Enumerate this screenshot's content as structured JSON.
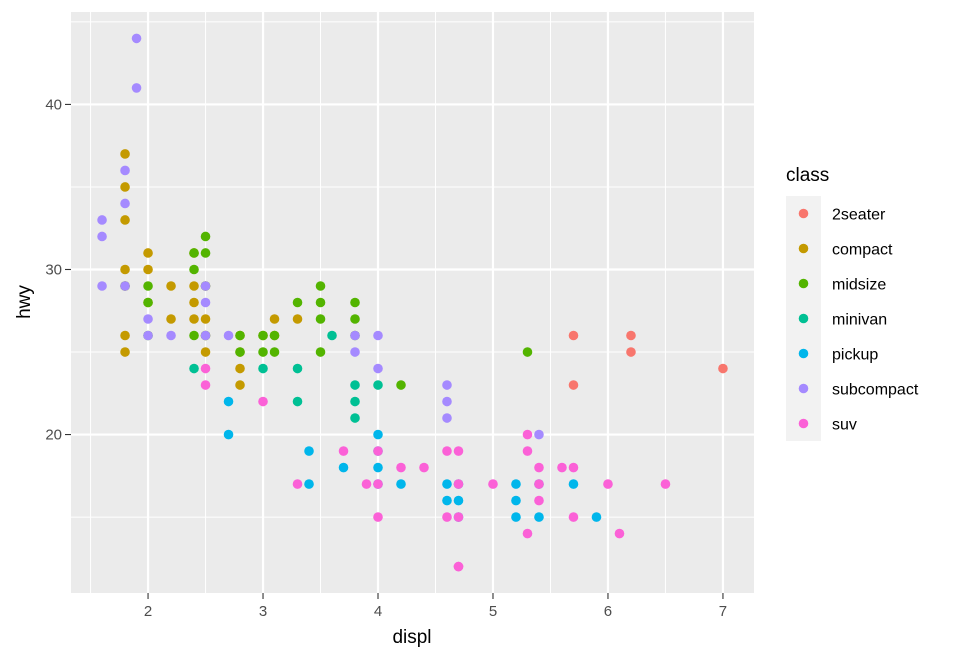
{
  "chart_data": {
    "type": "scatter",
    "xlabel": "displ",
    "ylabel": "hwy",
    "xlim": [
      1.33,
      7.27
    ],
    "ylim": [
      10.4,
      45.6
    ],
    "x_ticks": [
      2,
      3,
      4,
      5,
      6,
      7
    ],
    "y_ticks": [
      20,
      30,
      40
    ],
    "x_tick_labels": [
      "2",
      "3",
      "4",
      "5",
      "6",
      "7"
    ],
    "y_tick_labels": [
      "20",
      "30",
      "40"
    ],
    "grid": true,
    "legend": {
      "title": "class",
      "position": "right"
    },
    "series": [
      {
        "name": "2seater",
        "color": "#F8766D",
        "x": [
          5.7,
          5.7,
          6.2,
          6.2,
          7.0
        ],
        "y": [
          26,
          23,
          26,
          25,
          24
        ]
      },
      {
        "name": "compact",
        "color": "#C49A00",
        "x": [
          1.8,
          1.8,
          1.8,
          1.8,
          1.8,
          1.8,
          1.8,
          2.0,
          2.0,
          2.0,
          2.2,
          2.2,
          2.4,
          2.4,
          2.4,
          2.4,
          2.5,
          2.5,
          2.5,
          2.5,
          2.8,
          2.8,
          2.8,
          2.8,
          3.0,
          3.1,
          3.1,
          3.3
        ],
        "y": [
          37,
          35,
          33,
          30,
          29,
          26,
          25,
          31,
          30,
          28,
          29,
          27,
          31,
          29,
          28,
          27,
          29,
          27,
          26,
          25,
          26,
          25,
          24,
          23,
          26,
          27,
          26,
          27
        ]
      },
      {
        "name": "midsize",
        "color": "#53B400",
        "x": [
          1.8,
          2.0,
          2.0,
          2.0,
          2.4,
          2.4,
          2.4,
          2.5,
          2.5,
          2.5,
          2.5,
          2.8,
          2.8,
          3.0,
          3.0,
          3.1,
          3.1,
          3.3,
          3.5,
          3.5,
          3.5,
          3.5,
          3.8,
          3.8,
          3.8,
          4.2,
          5.3
        ],
        "y": [
          29,
          29,
          28,
          26,
          31,
          30,
          26,
          32,
          31,
          29,
          26,
          26,
          25,
          26,
          25,
          26,
          25,
          28,
          29,
          28,
          27,
          25,
          28,
          27,
          26,
          23,
          25
        ]
      },
      {
        "name": "minivan",
        "color": "#00C094",
        "x": [
          2.4,
          3.0,
          3.3,
          3.3,
          3.6,
          3.8,
          3.8,
          3.8,
          4.0
        ],
        "y": [
          24,
          24,
          24,
          22,
          26,
          23,
          22,
          21,
          23
        ]
      },
      {
        "name": "pickup",
        "color": "#00B6EB",
        "x": [
          2.7,
          2.7,
          3.4,
          3.4,
          3.7,
          4.0,
          4.0,
          4.0,
          4.0,
          4.2,
          4.6,
          4.6,
          4.7,
          4.7,
          4.7,
          5.2,
          5.2,
          5.2,
          5.4,
          5.4,
          5.7,
          5.9
        ],
        "y": [
          22,
          20,
          19,
          17,
          18,
          20,
          19,
          18,
          17,
          17,
          17,
          16,
          17,
          16,
          15,
          17,
          16,
          15,
          17,
          15,
          17,
          15
        ]
      },
      {
        "name": "subcompact",
        "color": "#A58AFF",
        "x": [
          1.6,
          1.6,
          1.6,
          1.8,
          1.8,
          1.8,
          1.9,
          1.9,
          2.0,
          2.0,
          2.2,
          2.5,
          2.5,
          2.5,
          2.7,
          3.8,
          3.8,
          4.0,
          4.0,
          4.6,
          4.6,
          4.6,
          5.4
        ],
        "y": [
          33,
          32,
          29,
          36,
          34,
          29,
          44,
          41,
          27,
          26,
          26,
          29,
          28,
          26,
          26,
          26,
          25,
          26,
          24,
          23,
          22,
          21,
          20
        ]
      },
      {
        "name": "suv",
        "color": "#FB61D7",
        "x": [
          2.5,
          2.5,
          3.0,
          3.3,
          3.7,
          3.9,
          4.0,
          4.0,
          4.0,
          4.2,
          4.4,
          4.6,
          4.6,
          4.7,
          4.7,
          4.7,
          4.7,
          4.7,
          5.0,
          5.3,
          5.3,
          5.3,
          5.4,
          5.4,
          5.4,
          5.6,
          5.7,
          5.7,
          6.0,
          6.1,
          6.5
        ],
        "y": [
          24,
          23,
          22,
          17,
          19,
          17,
          19,
          17,
          15,
          18,
          18,
          19,
          15,
          19,
          17,
          15,
          12,
          12,
          17,
          20,
          19,
          14,
          18,
          17,
          16,
          18,
          18,
          15,
          17,
          14,
          17
        ]
      }
    ]
  }
}
